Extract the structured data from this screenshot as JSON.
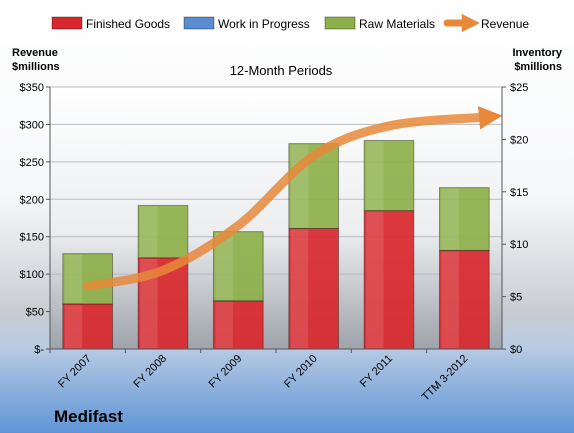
{
  "chart_data": {
    "type": "bar",
    "stacked": true,
    "subtitle": "12-Month Periods",
    "company": "Medifast",
    "categories": [
      "FY 2007",
      "FY 2008",
      "FY 2009",
      "FY 2010",
      "FY 2011",
      "TTM 3-2012"
    ],
    "y_left": {
      "label_line1": "Revenue",
      "label_line2": "$millions",
      "range": [
        0,
        350
      ],
      "ticks": [
        0,
        50,
        100,
        150,
        200,
        250,
        300,
        350
      ],
      "tick_labels": [
        "$-",
        "$50",
        "$100",
        "$150",
        "$200",
        "$250",
        "$300",
        "$350"
      ]
    },
    "y_right": {
      "label_line1": "Inventory",
      "label_line2": "$millions",
      "range": [
        0,
        25
      ],
      "ticks": [
        0,
        5,
        10,
        15,
        20,
        25
      ],
      "tick_labels": [
        "$0",
        "$5",
        "$10",
        "$15",
        "$20",
        "$25"
      ]
    },
    "series": [
      {
        "name": "Finished Goods",
        "axis": "right",
        "color": "#d9282e",
        "values": [
          4.3,
          8.7,
          4.6,
          11.5,
          13.2,
          9.4
        ]
      },
      {
        "name": "Work in Progress",
        "axis": "right",
        "color": "#5b8bd0",
        "values": [
          0,
          0,
          0,
          0,
          0,
          0
        ]
      },
      {
        "name": "Raw Materials",
        "axis": "right",
        "color": "#8db04a",
        "values": [
          4.8,
          5.0,
          6.6,
          8.1,
          6.7,
          6.0
        ]
      },
      {
        "name": "Revenue",
        "axis": "left",
        "color": "#e8883a",
        "type": "line",
        "values": [
          84,
          105,
          165,
          258,
          298,
          310
        ]
      }
    ],
    "legend_position": "top"
  }
}
